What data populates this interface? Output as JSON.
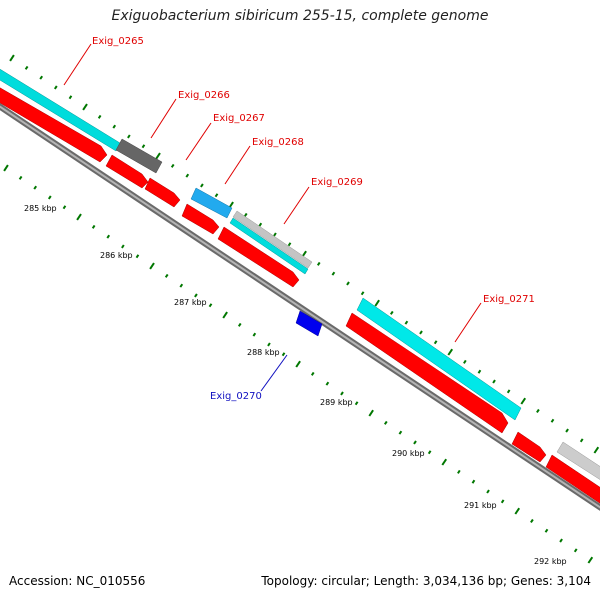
{
  "title": "Exiguobacterium sibiricum 255-15, complete genome",
  "footer": {
    "accession": "Accession: NC_010556",
    "topology": "Topology: circular; Length: 3,034,136 bp; Genes: 3,104"
  },
  "colors": {
    "cds_red": "#ff0000",
    "cyan": "#00e0e0",
    "gray_dark": "#666666",
    "gray_light": "#c8c8c8",
    "blue_light": "#22aaee",
    "blue": "#0000ee",
    "backbone": "#888888",
    "tick_green": "#007700"
  },
  "genes": [
    {
      "id": "g265",
      "name": "Exig_0265",
      "color": "red"
    },
    {
      "id": "g266",
      "name": "Exig_0266",
      "color": "red"
    },
    {
      "id": "g267",
      "name": "Exig_0267",
      "color": "red"
    },
    {
      "id": "g268",
      "name": "Exig_0268",
      "color": "red"
    },
    {
      "id": "g269",
      "name": "Exig_0269",
      "color": "red"
    },
    {
      "id": "g270",
      "name": "Exig_0270",
      "color": "blue"
    },
    {
      "id": "g271",
      "name": "Exig_0271",
      "color": "red"
    }
  ],
  "position_labels": [
    "285 kbp",
    "286 kbp",
    "287 kbp",
    "288 kbp",
    "289 kbp",
    "290 kbp",
    "291 kbp",
    "292 kbp"
  ]
}
